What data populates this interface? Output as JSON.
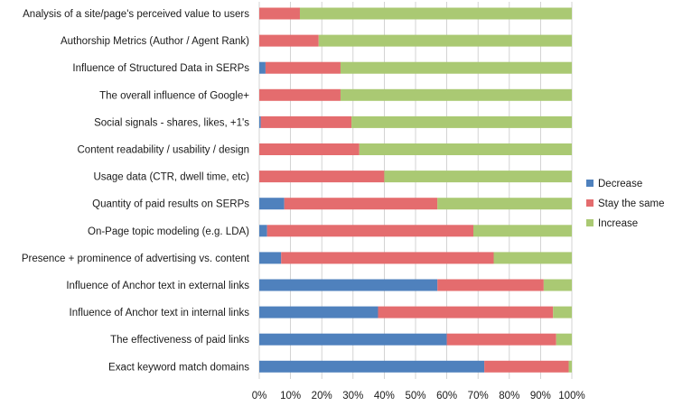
{
  "chart_data": {
    "type": "bar",
    "orientation": "horizontal",
    "stacked": "percent",
    "categories": [
      "Analysis of a site/page's perceived value to users",
      "Authorship Metrics (Author / Agent Rank)",
      "Influence of Structured Data in SERPs",
      "The overall influence of Google+",
      "Social signals - shares, likes, +1's",
      "Content readability / usability / design",
      "Usage data (CTR, dwell time, etc)",
      "Quantity of paid results on SERPs",
      "On-Page topic modeling (e.g. LDA)",
      "Presence + prominence of advertising vs. content",
      "Influence of Anchor text in external links",
      "Influence of Anchor text in internal links",
      "The effectiveness of paid links",
      "Exact keyword match domains"
    ],
    "series": [
      {
        "name": "Decrease",
        "color": "#4f81bd",
        "values": [
          0,
          0,
          2,
          0,
          0.5,
          0,
          0,
          8,
          2.5,
          7,
          57,
          38,
          60,
          72
        ]
      },
      {
        "name": "Stay the same",
        "color": "#e46c6e",
        "values": [
          13,
          19,
          24,
          26,
          29,
          32,
          40,
          49,
          66,
          68,
          34,
          56,
          35,
          27
        ]
      },
      {
        "name": "Increase",
        "color": "#aac973",
        "values": [
          87,
          81,
          74,
          74,
          70.5,
          68,
          60,
          43,
          31.5,
          25,
          9,
          6,
          5,
          1
        ]
      }
    ],
    "xlim": [
      0,
      100
    ],
    "x_ticks": [
      "0%",
      "10%",
      "20%",
      "30%",
      "40%",
      "50%",
      "60%",
      "70%",
      "80%",
      "90%",
      "100%"
    ],
    "grid": true,
    "legend_position": "right"
  }
}
